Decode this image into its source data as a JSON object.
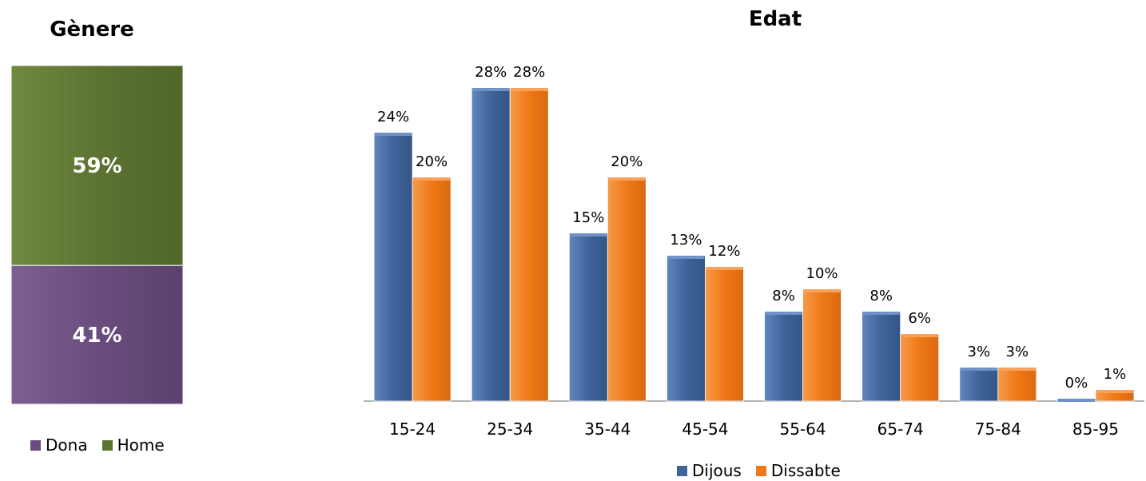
{
  "colors": {
    "dona": "#6a4d7e",
    "home": "#5c7332",
    "dijous": "#3f6499",
    "dissabte": "#f07817"
  },
  "chart_data": [
    {
      "type": "bar",
      "stacked": true,
      "title": "Gènere",
      "categories": [
        ""
      ],
      "series": [
        {
          "name": "Dona",
          "values": [
            41
          ],
          "label": "41%"
        },
        {
          "name": "Home",
          "values": [
            59
          ],
          "label": "59%"
        }
      ],
      "ylim": [
        0,
        100
      ],
      "legend": "bottom"
    },
    {
      "type": "bar",
      "title": "Edat",
      "categories": [
        "15-24",
        "25-34",
        "35-44",
        "45-54",
        "55-64",
        "65-74",
        "75-84",
        "85-95"
      ],
      "series": [
        {
          "name": "Dijous",
          "values": [
            24,
            28,
            15,
            13,
            8,
            8,
            3,
            0
          ],
          "labels": [
            "24%",
            "28%",
            "15%",
            "13%",
            "8%",
            "8%",
            "3%",
            "0%"
          ]
        },
        {
          "name": "Dissabte",
          "values": [
            20,
            28,
            20,
            12,
            10,
            6,
            3,
            1
          ],
          "labels": [
            "20%",
            "28%",
            "20%",
            "12%",
            "10%",
            "6%",
            "3%",
            "1%"
          ]
        }
      ],
      "ylim": [
        0,
        30
      ],
      "grid": false,
      "legend": "bottom"
    }
  ]
}
